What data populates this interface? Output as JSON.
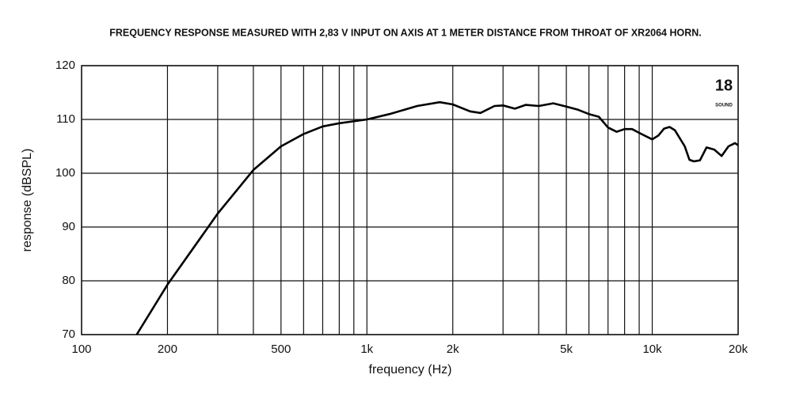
{
  "chart_data": {
    "type": "line",
    "title": "FREQUENCY RESPONSE MEASURED WITH 2,83 V INPUT ON AXIS AT 1 METER DISTANCE FROM THROAT OF XR2064 HORN.",
    "xlabel": "frequency (Hz)",
    "ylabel": "response (dBSPL)",
    "logo": [
      "18",
      "SOUND"
    ],
    "x": [
      156,
      200,
      300,
      400,
      500,
      600,
      700,
      800,
      1000,
      1200,
      1500,
      1800,
      2000,
      2300,
      2500,
      2800,
      3000,
      3300,
      3600,
      4000,
      4500,
      5000,
      5500,
      6000,
      6500,
      7000,
      7500,
      8000,
      8500,
      9000,
      10000,
      10500,
      11000,
      11500,
      12000,
      13000,
      13500,
      14000,
      14700,
      15500,
      16500,
      17500,
      18500,
      19500,
      20000
    ],
    "values": [
      70,
      79.3,
      92.5,
      100.6,
      105,
      107.3,
      108.7,
      109.3,
      110,
      111,
      112.5,
      113.2,
      112.8,
      111.5,
      111.2,
      112.5,
      112.6,
      112,
      112.7,
      112.5,
      113,
      112.4,
      111.8,
      111,
      110.5,
      108.5,
      107.7,
      108.2,
      108.2,
      107.5,
      106.3,
      107,
      108.3,
      108.6,
      108,
      105,
      102.5,
      102.2,
      102.4,
      104.8,
      104.4,
      103.2,
      105,
      105.6,
      105.2
    ],
    "color": "#000000",
    "xlim": [
      100,
      20000
    ],
    "ylim": [
      70,
      120
    ],
    "log_x": true,
    "grid": true,
    "xticks": [
      100,
      200,
      500,
      {
        "value": 1000,
        "label": "1k"
      },
      {
        "value": 2000,
        "label": "2k"
      },
      {
        "value": 5000,
        "label": "5k"
      },
      {
        "value": 10000,
        "label": "10k"
      },
      {
        "value": 20000,
        "label": "20k"
      }
    ],
    "x_grid": [
      300,
      400,
      600,
      700,
      800,
      900,
      3000,
      4000,
      6000,
      7000,
      8000,
      9000
    ],
    "yticks": [
      70,
      80,
      90,
      100,
      110,
      120
    ]
  }
}
